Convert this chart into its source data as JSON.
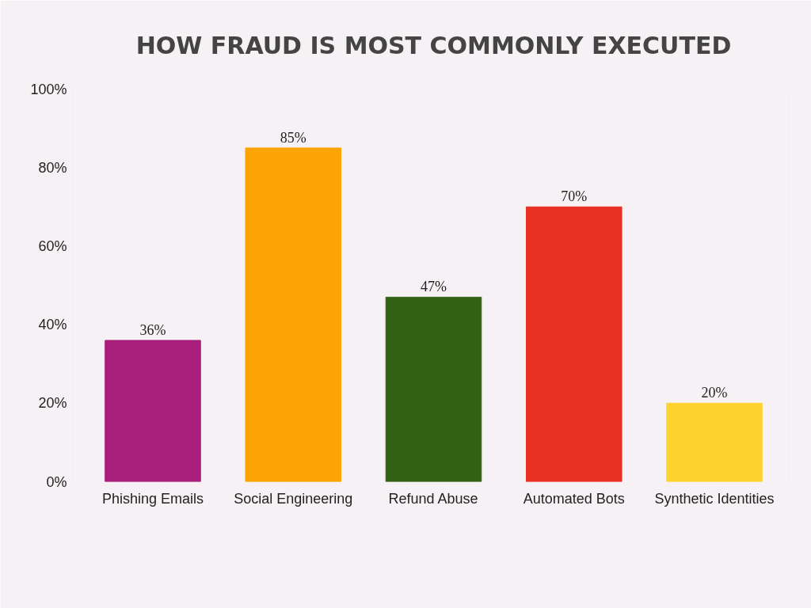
{
  "chart_data": {
    "type": "bar",
    "title": "HOW FRAUD IS MOST COMMONLY EXECUTED",
    "categories": [
      "Phishing Emails",
      "Social Engineering",
      "Refund Abuse",
      "Automated Bots",
      "Synthetic Identities"
    ],
    "values": [
      36,
      85,
      47,
      70,
      20
    ],
    "colors": [
      "#a91e7a",
      "#fba404",
      "#336114",
      "#e83123",
      "#fed330"
    ],
    "value_labels": [
      "36%",
      "85%",
      "47%",
      "70%",
      "20%"
    ],
    "ylim": [
      0,
      100
    ],
    "yticks": [
      {
        "value": 0,
        "label": "0%"
      },
      {
        "value": 20,
        "label": "20%"
      },
      {
        "value": 40,
        "label": "40%"
      },
      {
        "value": 60,
        "label": "60%"
      },
      {
        "value": 80,
        "label": "80%"
      },
      {
        "value": 100,
        "label": "100%"
      }
    ],
    "grid": false
  }
}
